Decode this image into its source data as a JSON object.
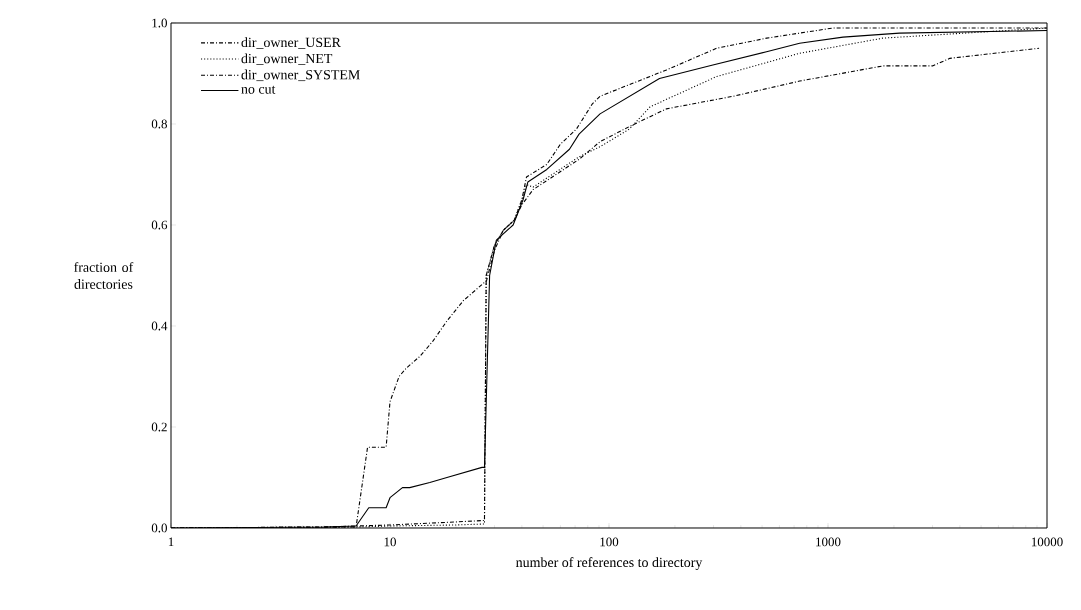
{
  "chart_data": {
    "type": "line",
    "xlabel": "number of references to directory",
    "ylabel": "fraction of directories",
    "log": "x",
    "xlim": [
      1,
      10000
    ],
    "ylim": [
      0,
      1
    ],
    "xticks": [
      1,
      10,
      100,
      1000,
      10000
    ],
    "yticks": [
      {
        "value": 0,
        "label": "0.0"
      },
      0.2,
      0.4,
      0.6,
      0.8,
      {
        "value": 1,
        "label": "1.0"
      }
    ],
    "legend": "top left",
    "grid": false,
    "series": [
      {
        "name": "dir_owner_USER",
        "color": "#000000",
        "line_style": "dashed",
        "x": [
          1,
          5,
          7,
          10,
          20,
          27,
          27.5,
          30,
          33,
          37,
          40,
          42,
          52,
          60,
          71,
          84,
          91,
          183,
          310,
          525,
          1050,
          10000
        ],
        "values": [
          0,
          0.002,
          0.004,
          0.006,
          0.012,
          0.015,
          0.5,
          0.56,
          0.59,
          0.61,
          0.65,
          0.695,
          0.72,
          0.76,
          0.79,
          0.84,
          0.855,
          0.907,
          0.95,
          0.97,
          0.99,
          0.99
        ]
      },
      {
        "name": "dir_owner_NET",
        "color": "#000000",
        "line_style": "dotted",
        "x": [
          1,
          7,
          10,
          20,
          27,
          27.5,
          30,
          33,
          37,
          40,
          42,
          45,
          73,
          91,
          124,
          154,
          310,
          742,
          1780,
          10000
        ],
        "values": [
          0,
          0.002,
          0.004,
          0.006,
          0.008,
          0.5,
          0.56,
          0.59,
          0.61,
          0.65,
          0.68,
          0.675,
          0.735,
          0.755,
          0.79,
          0.834,
          0.894,
          0.94,
          0.97,
          0.99
        ]
      },
      {
        "name": "dir_owner_SYSTEM",
        "color": "#000000",
        "line_style": "dashed",
        "x": [
          1,
          7,
          7.9,
          9.6,
          10,
          11,
          11.9,
          13.7,
          15.7,
          18.2,
          21.6,
          27.6,
          30,
          33,
          37,
          40,
          45,
          73,
          91,
          124,
          183,
          370,
          742,
          1780,
          3000,
          3600,
          9200
        ],
        "values": [
          0,
          0.002,
          0.16,
          0.16,
          0.25,
          0.3,
          0.317,
          0.34,
          0.37,
          0.41,
          0.45,
          0.49,
          0.55,
          0.59,
          0.61,
          0.64,
          0.67,
          0.73,
          0.765,
          0.795,
          0.83,
          0.855,
          0.885,
          0.915,
          0.915,
          0.93,
          0.95
        ]
      },
      {
        "name": "no cut",
        "color": "#000000",
        "line_style": "solid",
        "x": [
          1,
          5,
          7,
          8,
          9.6,
          10,
          11.4,
          12.3,
          15.2,
          18.2,
          26.3,
          27,
          28.5,
          30.6,
          36.5,
          40.5,
          42.6,
          52,
          66,
          73,
          91,
          170,
          298,
          524,
          742,
          1170,
          2120,
          10000
        ],
        "values": [
          0,
          0.002,
          0.004,
          0.04,
          0.04,
          0.06,
          0.08,
          0.08,
          0.09,
          0.1,
          0.12,
          0.12,
          0.5,
          0.57,
          0.6,
          0.65,
          0.685,
          0.71,
          0.75,
          0.78,
          0.82,
          0.89,
          0.917,
          0.943,
          0.96,
          0.972,
          0.98,
          0.985
        ]
      }
    ]
  }
}
